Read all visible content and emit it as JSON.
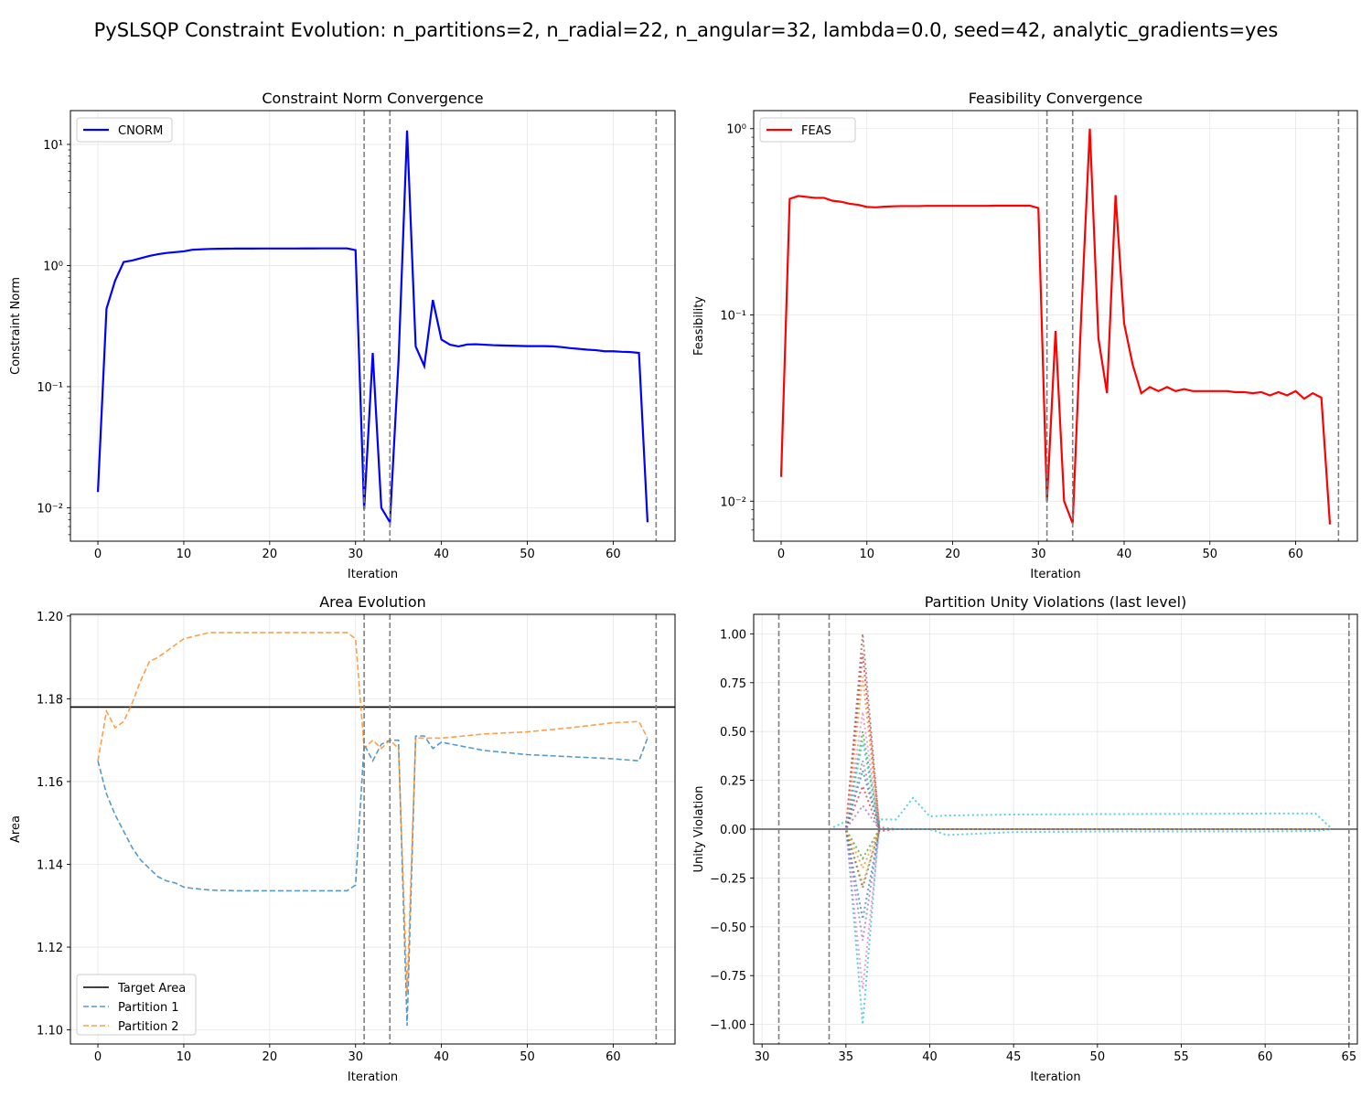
{
  "figure": {
    "title": "PySLSQP Constraint Evolution: n_partitions=2, n_radial=22, n_angular=32, lambda=0.0, seed=42, analytic_gradients=yes"
  },
  "colors": {
    "cnorm": "#0000ff",
    "feas": "#ff0000",
    "partition1": "#1f77b4",
    "partition2": "#ff7f0e",
    "target": "#000000",
    "vline": "#808080",
    "grid": "#e6e6e6"
  },
  "chart_data": [
    {
      "id": "cnorm",
      "type": "line",
      "title": "Constraint Norm Convergence",
      "xlabel": "Iteration",
      "ylabel": "Constraint Norm",
      "yscale": "log",
      "xlim": [
        -3.2,
        67.2
      ],
      "ylim": [
        0.0053,
        19
      ],
      "xticks": [
        0,
        10,
        20,
        30,
        40,
        50,
        60
      ],
      "yticks": [
        0.01,
        0.1,
        1,
        10
      ],
      "ytick_labels": [
        "10⁻²",
        "10⁻¹",
        "10⁰",
        "10¹"
      ],
      "vlines": [
        31,
        34,
        65
      ],
      "grid": true,
      "legend": "upper left",
      "series": [
        {
          "name": "CNORM",
          "style": "solid",
          "x": [
            0,
            1,
            2,
            3,
            4,
            5,
            6,
            7,
            8,
            9,
            10,
            11,
            12,
            13,
            14,
            15,
            16,
            17,
            18,
            19,
            20,
            21,
            22,
            23,
            24,
            25,
            26,
            27,
            28,
            29,
            30,
            31,
            32,
            33,
            34,
            35,
            36,
            37,
            38,
            39,
            40,
            41,
            42,
            43,
            44,
            45,
            46,
            47,
            48,
            49,
            50,
            51,
            52,
            53,
            54,
            55,
            56,
            57,
            58,
            59,
            60,
            61,
            62,
            63,
            64
          ],
          "y": [
            0.0135,
            0.44,
            0.75,
            1.07,
            1.1,
            1.15,
            1.2,
            1.24,
            1.27,
            1.29,
            1.31,
            1.35,
            1.36,
            1.37,
            1.375,
            1.378,
            1.38,
            1.38,
            1.38,
            1.382,
            1.382,
            1.383,
            1.383,
            1.383,
            1.384,
            1.384,
            1.385,
            1.385,
            1.385,
            1.385,
            1.34,
            0.0097,
            0.19,
            0.01,
            0.0076,
            0.16,
            13.0,
            0.215,
            0.148,
            0.52,
            0.245,
            0.222,
            0.215,
            0.223,
            0.224,
            0.222,
            0.22,
            0.219,
            0.218,
            0.217,
            0.216,
            0.216,
            0.216,
            0.215,
            0.212,
            0.208,
            0.205,
            0.202,
            0.2,
            0.196,
            0.196,
            0.194,
            0.193,
            0.19,
            0.0076
          ]
        }
      ]
    },
    {
      "id": "feas",
      "type": "line",
      "title": "Feasibility Convergence",
      "xlabel": "Iteration",
      "ylabel": "Feasibility",
      "yscale": "log",
      "xlim": [
        -3.2,
        67.2
      ],
      "ylim": [
        0.0061,
        1.25
      ],
      "xticks": [
        0,
        10,
        20,
        30,
        40,
        50,
        60
      ],
      "yticks": [
        0.01,
        0.1,
        1
      ],
      "ytick_labels": [
        "10⁻²",
        "10⁻¹",
        "10⁰"
      ],
      "vlines": [
        31,
        34,
        65
      ],
      "grid": true,
      "legend": "upper left",
      "series": [
        {
          "name": "FEAS",
          "style": "solid",
          "x": [
            0,
            1,
            2,
            3,
            4,
            5,
            6,
            7,
            8,
            9,
            10,
            11,
            12,
            13,
            14,
            15,
            16,
            17,
            18,
            19,
            20,
            21,
            22,
            23,
            24,
            25,
            26,
            27,
            28,
            29,
            30,
            31,
            32,
            33,
            34,
            35,
            36,
            37,
            38,
            39,
            40,
            41,
            42,
            43,
            44,
            45,
            46,
            47,
            48,
            49,
            50,
            51,
            52,
            53,
            54,
            55,
            56,
            57,
            58,
            59,
            60,
            61,
            62,
            63,
            64
          ],
          "y": [
            0.0135,
            0.42,
            0.435,
            0.43,
            0.425,
            0.425,
            0.41,
            0.405,
            0.395,
            0.39,
            0.38,
            0.378,
            0.381,
            0.383,
            0.384,
            0.384,
            0.384,
            0.385,
            0.385,
            0.385,
            0.385,
            0.385,
            0.385,
            0.385,
            0.385,
            0.386,
            0.386,
            0.386,
            0.386,
            0.386,
            0.375,
            0.01,
            0.082,
            0.01,
            0.0076,
            0.1,
            1.0,
            0.075,
            0.038,
            0.44,
            0.09,
            0.054,
            0.038,
            0.041,
            0.039,
            0.041,
            0.039,
            0.04,
            0.039,
            0.039,
            0.039,
            0.039,
            0.039,
            0.0385,
            0.0385,
            0.038,
            0.0385,
            0.037,
            0.0385,
            0.037,
            0.039,
            0.0355,
            0.038,
            0.036,
            0.0075
          ]
        }
      ]
    },
    {
      "id": "area",
      "type": "line",
      "title": "Area Evolution",
      "xlabel": "Iteration",
      "ylabel": "Area",
      "yscale": "linear",
      "xlim": [
        -3.2,
        67.2
      ],
      "ylim": [
        1.0966,
        1.2004
      ],
      "xticks": [
        0,
        10,
        20,
        30,
        40,
        50,
        60
      ],
      "yticks": [
        1.1,
        1.12,
        1.14,
        1.16,
        1.18,
        1.2
      ],
      "ytick_labels": [
        "1.10",
        "1.12",
        "1.14",
        "1.16",
        "1.18",
        "1.20"
      ],
      "vlines": [
        31,
        34,
        65
      ],
      "hline": 1.178,
      "grid": true,
      "legend": "lower left",
      "legend_entries": [
        "Target Area",
        "Partition 1",
        "Partition 2"
      ],
      "series": [
        {
          "name": "Partition 1",
          "style": "dashed",
          "x": [
            0,
            1,
            2,
            3,
            4,
            5,
            6,
            7,
            8,
            9,
            10,
            11,
            12,
            13,
            14,
            15,
            16,
            17,
            18,
            19,
            20,
            21,
            22,
            23,
            24,
            25,
            26,
            27,
            28,
            29,
            30,
            31,
            32,
            33,
            34,
            35,
            36,
            37,
            38,
            39,
            40,
            45,
            50,
            55,
            60,
            63,
            64
          ],
          "y": [
            1.165,
            1.157,
            1.152,
            1.148,
            1.144,
            1.141,
            1.139,
            1.137,
            1.136,
            1.1355,
            1.1345,
            1.1342,
            1.134,
            1.1338,
            1.1337,
            1.1337,
            1.1336,
            1.1336,
            1.1336,
            1.1336,
            1.1336,
            1.1336,
            1.1336,
            1.1336,
            1.1336,
            1.1336,
            1.1336,
            1.1336,
            1.1336,
            1.1336,
            1.135,
            1.169,
            1.165,
            1.169,
            1.17,
            1.17,
            1.101,
            1.171,
            1.171,
            1.168,
            1.1695,
            1.1675,
            1.1665,
            1.166,
            1.1655,
            1.165,
            1.1705
          ]
        },
        {
          "name": "Partition 2",
          "style": "dashed",
          "x": [
            0,
            1,
            2,
            3,
            4,
            5,
            6,
            7,
            8,
            9,
            10,
            11,
            12,
            13,
            14,
            15,
            16,
            17,
            18,
            19,
            20,
            21,
            22,
            23,
            24,
            25,
            26,
            27,
            28,
            29,
            30,
            31,
            32,
            33,
            34,
            35,
            36,
            37,
            38,
            39,
            40,
            45,
            50,
            55,
            60,
            63,
            64
          ],
          "y": [
            1.165,
            1.177,
            1.173,
            1.1745,
            1.179,
            1.1845,
            1.189,
            1.19,
            1.1915,
            1.193,
            1.1945,
            1.195,
            1.1955,
            1.196,
            1.196,
            1.196,
            1.196,
            1.196,
            1.196,
            1.196,
            1.196,
            1.196,
            1.196,
            1.196,
            1.196,
            1.196,
            1.196,
            1.196,
            1.196,
            1.196,
            1.1945,
            1.168,
            1.17,
            1.168,
            1.17,
            1.168,
            1.109,
            1.1705,
            1.1705,
            1.1705,
            1.1705,
            1.1715,
            1.172,
            1.173,
            1.1742,
            1.1745,
            1.1705
          ]
        }
      ]
    },
    {
      "id": "unity",
      "type": "line",
      "title": "Partition Unity Violations (last level)",
      "xlabel": "Iteration",
      "ylabel": "Unity Violation",
      "yscale": "linear",
      "xlim": [
        29.5,
        65.5
      ],
      "ylim": [
        -1.1,
        1.1
      ],
      "xticks": [
        30,
        35,
        40,
        45,
        50,
        55,
        60,
        65
      ],
      "yticks": [
        -1.0,
        -0.75,
        -0.5,
        -0.25,
        0.0,
        0.25,
        0.5,
        0.75,
        1.0
      ],
      "ytick_labels": [
        "−1.00",
        "−0.75",
        "−0.50",
        "−0.25",
        "0.00",
        "0.25",
        "0.50",
        "0.75",
        "1.00"
      ],
      "vlines": [
        31,
        34,
        65
      ],
      "hline": 0.0,
      "grid": true,
      "series_style": "dotted",
      "x": [
        34,
        35,
        36,
        37,
        38,
        39,
        40,
        41,
        45,
        50,
        55,
        60,
        63,
        64
      ],
      "series": [
        {
          "color": "#17becf",
          "y": [
            0,
            0.04,
            -1.0,
            0.05,
            0.05,
            0.16,
            0.065,
            0.07,
            0.075,
            0.077,
            0.078,
            0.08,
            0.08,
            0.0
          ]
        },
        {
          "color": "#e377c2",
          "y": [
            0,
            0.0,
            -0.82,
            0.0,
            0.0,
            0.0,
            0.0,
            0.0,
            0.0,
            0.0,
            0.0,
            0.0,
            0.0,
            0.0
          ]
        },
        {
          "color": "#9467bd",
          "y": [
            0,
            0.0,
            -0.57,
            0.01,
            0.0,
            0.0,
            0.0,
            0.0,
            0.0,
            0.0,
            0.0,
            0.0,
            0.0,
            0.0
          ]
        },
        {
          "color": "#1f77b4",
          "y": [
            0,
            0.0,
            -0.46,
            0.0,
            0.0,
            0.0,
            0.0,
            0.0,
            0.0,
            0.0,
            0.0,
            0.0,
            0.0,
            0.0
          ]
        },
        {
          "color": "#8c564b",
          "y": [
            0,
            0.0,
            1.0,
            0.0,
            0.0,
            0.0,
            0.0,
            0.0,
            0.0,
            0.0,
            0.0,
            0.0,
            0.0,
            0.0
          ]
        },
        {
          "color": "#d62728",
          "y": [
            0,
            0.0,
            0.9,
            0.0,
            0.0,
            0.0,
            0.0,
            0.0,
            0.0,
            0.0,
            0.0,
            0.0,
            0.0,
            0.0
          ]
        },
        {
          "color": "#ff7f0e",
          "y": [
            0,
            0.0,
            0.78,
            0.0,
            0.0,
            0.0,
            0.0,
            0.0,
            0.0,
            0.0,
            0.0,
            0.0,
            0.0,
            0.0
          ]
        },
        {
          "color": "#2ca02c",
          "y": [
            0,
            0.0,
            0.5,
            0.0,
            0.0,
            0.0,
            0.0,
            0.0,
            0.0,
            0.0,
            0.0,
            0.0,
            0.0,
            0.0
          ]
        },
        {
          "color": "#7f7f7f",
          "y": [
            0,
            0.0,
            0.35,
            0.0,
            0.0,
            0.0,
            0.0,
            0.0,
            0.0,
            0.0,
            0.0,
            0.0,
            0.0,
            0.0
          ]
        },
        {
          "color": "#bcbd22",
          "y": [
            0,
            0.0,
            -0.28,
            0.0,
            0.0,
            0.0,
            0.0,
            0.0,
            0.0,
            0.0,
            0.0,
            0.0,
            0.0,
            0.0
          ]
        },
        {
          "color": "#17becf",
          "y": [
            0,
            0.0,
            0.45,
            0.0,
            0.0,
            0.0,
            0.0,
            -0.03,
            -0.015,
            -0.012,
            -0.012,
            -0.012,
            -0.01,
            0.0
          ]
        },
        {
          "color": "#2ca02c",
          "y": [
            0,
            0.0,
            -0.15,
            0.0,
            0.0,
            0.0,
            0.0,
            0.0,
            0.0,
            0.0,
            0.0,
            0.0,
            0.0,
            0.0
          ]
        },
        {
          "color": "#d62728",
          "y": [
            0,
            0.0,
            0.22,
            -0.01,
            0.0,
            0.0,
            0.0,
            0.0,
            0.0,
            0.0,
            0.0,
            0.0,
            0.0,
            0.0
          ]
        },
        {
          "color": "#8c564b",
          "y": [
            0,
            0.0,
            -0.3,
            0.0,
            0.0,
            0.0,
            0.0,
            0.0,
            0.0,
            0.0,
            0.0,
            0.0,
            0.0,
            0.0
          ]
        },
        {
          "color": "#e377c2",
          "y": [
            0,
            0.0,
            0.6,
            0.0,
            0.0,
            0.0,
            0.0,
            0.0,
            0.0,
            0.0,
            0.0,
            0.0,
            0.0,
            0.0
          ]
        },
        {
          "color": "#ff7f0e",
          "y": [
            0,
            0.0,
            -0.2,
            0.0,
            0.0,
            0.0,
            0.0,
            0.0,
            0.0,
            0.0,
            0.0,
            0.0,
            0.0,
            0.0
          ]
        },
        {
          "color": "#1f77b4",
          "y": [
            0,
            0.0,
            0.3,
            0.0,
            0.0,
            0.0,
            0.0,
            0.0,
            0.0,
            0.0,
            0.0,
            0.0,
            0.0,
            0.0
          ]
        },
        {
          "color": "#9467bd",
          "y": [
            0,
            0.0,
            0.12,
            0.0,
            0.0,
            0.0,
            0.0,
            0.0,
            0.0,
            0.0,
            0.0,
            0.0,
            0.0,
            0.0
          ]
        }
      ]
    }
  ]
}
